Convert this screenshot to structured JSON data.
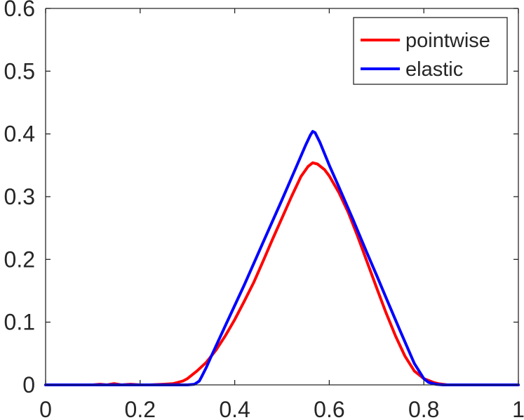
{
  "chart_data": {
    "type": "line",
    "xlim": [
      0,
      1
    ],
    "ylim": [
      0,
      0.6
    ],
    "x_ticks": [
      0,
      0.2,
      0.4,
      0.6,
      0.8,
      1
    ],
    "y_ticks": [
      0,
      0.1,
      0.2,
      0.3,
      0.4,
      0.5,
      0.6
    ],
    "x_tick_labels": [
      "0",
      "0.2",
      "0.4",
      "0.6",
      "0.8",
      "1"
    ],
    "y_tick_labels": [
      "0",
      "0.1",
      "0.2",
      "0.3",
      "0.4",
      "0.5",
      "0.6"
    ],
    "grid": false,
    "legend_position": "top-right",
    "series": [
      {
        "name": "pointwise",
        "color": "#ff0000",
        "x": [
          0,
          0.1,
          0.115,
          0.13,
          0.145,
          0.16,
          0.18,
          0.2,
          0.22,
          0.25,
          0.27,
          0.29,
          0.3,
          0.32,
          0.34,
          0.36,
          0.38,
          0.4,
          0.42,
          0.44,
          0.46,
          0.48,
          0.5,
          0.52,
          0.54,
          0.555,
          0.565,
          0.575,
          0.59,
          0.6,
          0.62,
          0.64,
          0.66,
          0.68,
          0.7,
          0.72,
          0.74,
          0.76,
          0.78,
          0.8,
          0.82,
          0.83,
          0.85,
          0.9,
          1
        ],
        "y": [
          0,
          0,
          0.001,
          0,
          0.002,
          0,
          0.001,
          0,
          0,
          0.001,
          0.002,
          0.006,
          0.01,
          0.022,
          0.036,
          0.055,
          0.078,
          0.104,
          0.133,
          0.163,
          0.197,
          0.232,
          0.266,
          0.3,
          0.332,
          0.348,
          0.354,
          0.352,
          0.343,
          0.333,
          0.307,
          0.275,
          0.237,
          0.196,
          0.155,
          0.115,
          0.078,
          0.046,
          0.022,
          0.01,
          0.004,
          0.002,
          0,
          0,
          0
        ]
      },
      {
        "name": "elastic",
        "color": "#0000ff",
        "x": [
          0,
          0.2,
          0.3,
          0.315,
          0.325,
          0.33,
          0.34,
          0.35,
          0.38,
          0.42,
          0.46,
          0.5,
          0.53,
          0.55,
          0.56,
          0.565,
          0.57,
          0.58,
          0.6,
          0.62,
          0.65,
          0.68,
          0.7,
          0.72,
          0.75,
          0.78,
          0.8,
          0.81,
          0.825,
          0.84,
          1
        ],
        "y": [
          0,
          0,
          0,
          0.001,
          0.006,
          0.013,
          0.028,
          0.045,
          0.094,
          0.159,
          0.227,
          0.295,
          0.347,
          0.382,
          0.398,
          0.404,
          0.402,
          0.387,
          0.35,
          0.316,
          0.264,
          0.21,
          0.175,
          0.139,
          0.086,
          0.034,
          0.01,
          0.004,
          0.001,
          0,
          0
        ]
      }
    ]
  }
}
